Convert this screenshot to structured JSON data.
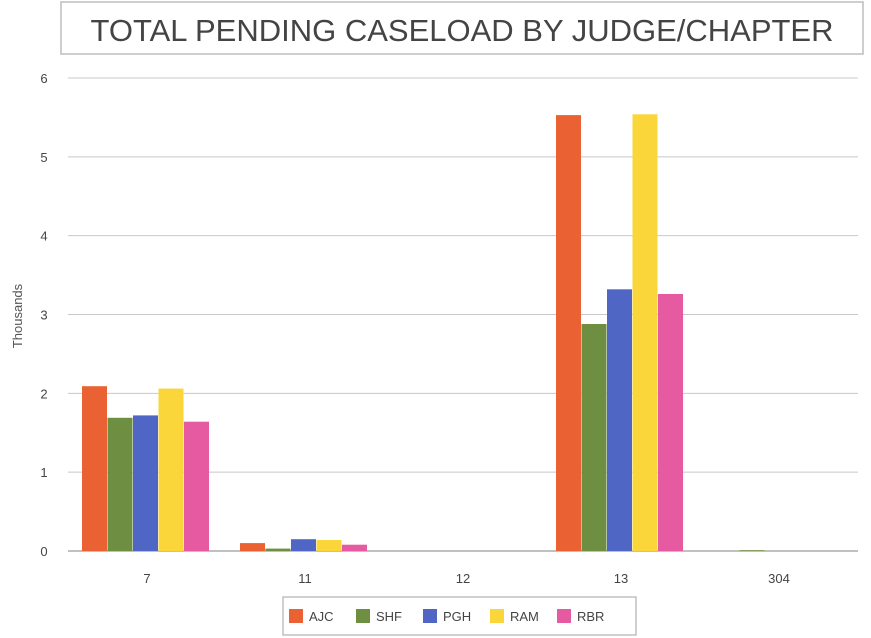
{
  "chart_data": {
    "type": "bar",
    "title": "TOTAL PENDING  CASELOAD BY JUDGE/CHAPTER",
    "ylabel": "Thousands",
    "xlabel": "",
    "ylim": [
      0,
      6
    ],
    "yticks": [
      0,
      1,
      2,
      3,
      4,
      5,
      6
    ],
    "grid": true,
    "legend_position": "bottom",
    "categories": [
      "7",
      "11",
      "12",
      "13",
      "304"
    ],
    "series": [
      {
        "name": "AJC",
        "color": "#ea6234",
        "values": [
          2.09,
          0.1,
          0.0,
          5.53,
          0.0
        ]
      },
      {
        "name": "SHF",
        "color": "#6e8f42",
        "values": [
          1.69,
          0.03,
          0.0,
          2.88,
          0.01
        ]
      },
      {
        "name": "PGH",
        "color": "#4f66c4",
        "values": [
          1.72,
          0.15,
          0.0,
          3.32,
          0.0
        ]
      },
      {
        "name": "RAM",
        "color": "#fad63b",
        "values": [
          2.06,
          0.14,
          0.0,
          5.54,
          0.0
        ]
      },
      {
        "name": "RBR",
        "color": "#e55aa0",
        "values": [
          1.64,
          0.08,
          0.0,
          3.26,
          0.0
        ]
      }
    ]
  }
}
